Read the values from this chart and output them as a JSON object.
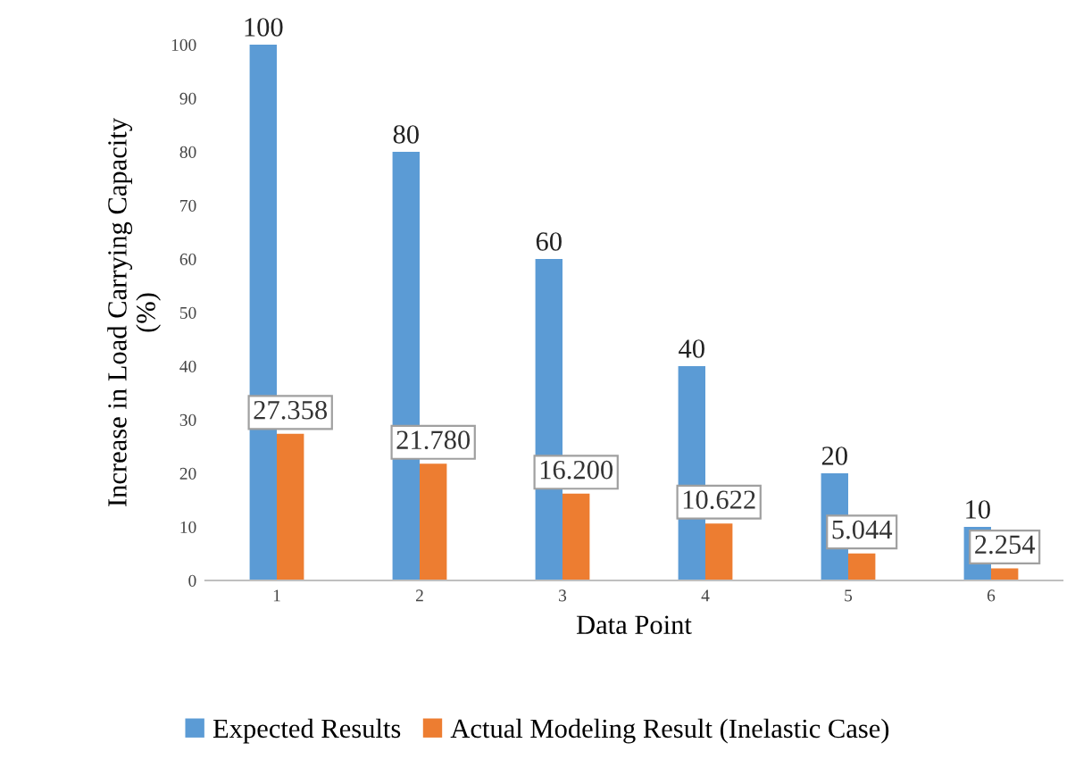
{
  "chart_data": {
    "type": "bar",
    "xlabel": "Data Point",
    "ylabel": "Increase in Load Carrying Capacity\n(%)",
    "categories": [
      "1",
      "2",
      "3",
      "4",
      "5",
      "6"
    ],
    "series": [
      {
        "name": "Expected Results",
        "color": "#5b9bd5",
        "values": [
          100,
          80,
          60,
          40,
          20,
          10
        ],
        "value_labels": [
          "100",
          "80",
          "60",
          "40",
          "20",
          "10"
        ]
      },
      {
        "name": "Actual Modeling Result (Inelastic Case)",
        "color": "#ed7d31",
        "values": [
          27.358,
          21.78,
          16.2,
          10.622,
          5.044,
          2.254
        ],
        "value_labels": [
          "27.358",
          "21.780",
          "16.200",
          "10.622",
          "5.044",
          "2.254"
        ]
      }
    ],
    "ylim": [
      0,
      100
    ],
    "yticks": [
      0,
      10,
      20,
      30,
      40,
      50,
      60,
      70,
      80,
      90,
      100
    ],
    "grid": false,
    "legend": "bottom"
  }
}
